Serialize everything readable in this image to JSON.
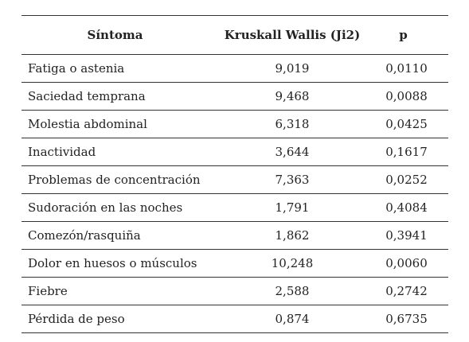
{
  "table": {
    "headers": {
      "symptom": "Síntoma",
      "kruskal": "Kruskall Wallis (Ji2)",
      "p": "p"
    },
    "rows": [
      {
        "symptom": "Fatiga o astenia",
        "kruskal": "9,019",
        "p": "0,0110"
      },
      {
        "symptom": "Saciedad temprana",
        "kruskal": "9,468",
        "p": "0,0088"
      },
      {
        "symptom": "Molestia abdominal",
        "kruskal": "6,318",
        "p": "0,0425"
      },
      {
        "symptom": "Inactividad",
        "kruskal": "3,644",
        "p": "0,1617"
      },
      {
        "symptom": "Problemas de concentración",
        "kruskal": "7,363",
        "p": "0,0252"
      },
      {
        "symptom": "Sudoración en las noches",
        "kruskal": "1,791",
        "p": "0,4084"
      },
      {
        "symptom": "Comezón/rasquiña",
        "kruskal": "1,862",
        "p": "0,3941"
      },
      {
        "symptom": "Dolor en huesos o músculos",
        "kruskal": "10,248",
        "p": "0,0060"
      },
      {
        "symptom": "Fiebre",
        "kruskal": "2,588",
        "p": "0,2742"
      },
      {
        "symptom": "Pérdida de peso",
        "kruskal": "0,874",
        "p": "0,6735"
      }
    ]
  },
  "colors": {
    "text": "#222222",
    "rule": "#333333",
    "background": "#ffffff"
  }
}
